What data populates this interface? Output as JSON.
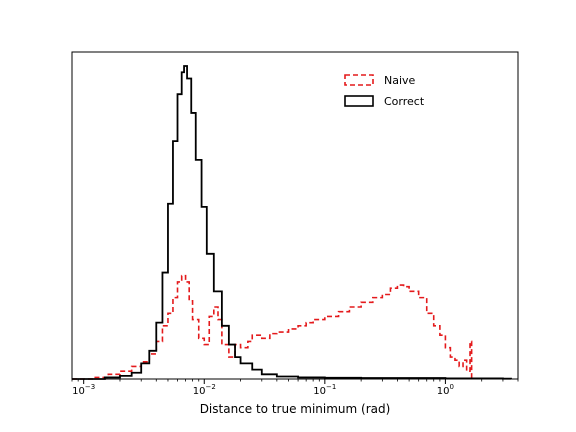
{
  "chart_data": {
    "type": "histogram",
    "xscale": "log",
    "xlim": [
      0.0008,
      4.0
    ],
    "ylim": [
      0,
      1.0
    ],
    "yticks_visible": false,
    "grid": false,
    "legend_position": "top-right",
    "xlabel": "Distance to true minimum (rad)",
    "xticks": [
      {
        "base": "10",
        "exp": "−3",
        "value": 0.001
      },
      {
        "base": "10",
        "exp": "−2",
        "value": 0.01
      },
      {
        "base": "10",
        "exp": "−1",
        "value": 0.1
      },
      {
        "base": "10",
        "exp": "0",
        "value": 1
      }
    ],
    "series": [
      {
        "name": "Naive",
        "color": "#e41a1c",
        "linestyle": "dashed",
        "points": [
          [
            0.0008,
            0.0
          ],
          [
            0.0012,
            0.005
          ],
          [
            0.0016,
            0.015
          ],
          [
            0.002,
            0.025
          ],
          [
            0.0025,
            0.04
          ],
          [
            0.003,
            0.055
          ],
          [
            0.0035,
            0.08
          ],
          [
            0.004,
            0.12
          ],
          [
            0.0045,
            0.17
          ],
          [
            0.005,
            0.21
          ],
          [
            0.0055,
            0.26
          ],
          [
            0.006,
            0.31
          ],
          [
            0.0065,
            0.33
          ],
          [
            0.007,
            0.31
          ],
          [
            0.0075,
            0.25
          ],
          [
            0.008,
            0.19
          ],
          [
            0.009,
            0.13
          ],
          [
            0.01,
            0.11
          ],
          [
            0.011,
            0.2
          ],
          [
            0.012,
            0.23
          ],
          [
            0.013,
            0.19
          ],
          [
            0.014,
            0.11
          ],
          [
            0.016,
            0.07
          ],
          [
            0.018,
            0.11
          ],
          [
            0.02,
            0.1
          ],
          [
            0.023,
            0.12
          ],
          [
            0.025,
            0.14
          ],
          [
            0.03,
            0.13
          ],
          [
            0.035,
            0.145
          ],
          [
            0.04,
            0.15
          ],
          [
            0.05,
            0.16
          ],
          [
            0.06,
            0.17
          ],
          [
            0.07,
            0.18
          ],
          [
            0.08,
            0.19
          ],
          [
            0.1,
            0.2
          ],
          [
            0.13,
            0.215
          ],
          [
            0.16,
            0.23
          ],
          [
            0.2,
            0.245
          ],
          [
            0.25,
            0.26
          ],
          [
            0.3,
            0.27
          ],
          [
            0.35,
            0.29
          ],
          [
            0.4,
            0.3
          ],
          [
            0.45,
            0.295
          ],
          [
            0.5,
            0.28
          ],
          [
            0.6,
            0.26
          ],
          [
            0.7,
            0.21
          ],
          [
            0.8,
            0.17
          ],
          [
            0.9,
            0.14
          ],
          [
            1.0,
            0.1
          ],
          [
            1.1,
            0.07
          ],
          [
            1.2,
            0.06
          ],
          [
            1.3,
            0.04
          ],
          [
            1.4,
            0.06
          ],
          [
            1.5,
            0.025
          ],
          [
            1.6,
            0.12
          ],
          [
            1.65,
            0.0
          ]
        ]
      },
      {
        "name": "Correct",
        "color": "#000000",
        "linestyle": "solid",
        "points": [
          [
            0.0008,
            0.0
          ],
          [
            0.0015,
            0.005
          ],
          [
            0.002,
            0.01
          ],
          [
            0.0025,
            0.02
          ],
          [
            0.003,
            0.05
          ],
          [
            0.0035,
            0.09
          ],
          [
            0.004,
            0.18
          ],
          [
            0.0045,
            0.34
          ],
          [
            0.005,
            0.56
          ],
          [
            0.0055,
            0.76
          ],
          [
            0.006,
            0.91
          ],
          [
            0.0065,
            0.98
          ],
          [
            0.0068,
            1.0
          ],
          [
            0.0072,
            0.96
          ],
          [
            0.0078,
            0.85
          ],
          [
            0.0085,
            0.7
          ],
          [
            0.0095,
            0.55
          ],
          [
            0.0105,
            0.4
          ],
          [
            0.012,
            0.28
          ],
          [
            0.014,
            0.17
          ],
          [
            0.016,
            0.11
          ],
          [
            0.018,
            0.07
          ],
          [
            0.02,
            0.05
          ],
          [
            0.025,
            0.03
          ],
          [
            0.03,
            0.015
          ],
          [
            0.04,
            0.008
          ],
          [
            0.06,
            0.005
          ],
          [
            0.1,
            0.004
          ],
          [
            0.2,
            0.003
          ],
          [
            0.5,
            0.003
          ],
          [
            1.0,
            0.002
          ],
          [
            2.0,
            0.002
          ],
          [
            3.0,
            0.001
          ],
          [
            3.5,
            0.0
          ]
        ]
      }
    ]
  }
}
